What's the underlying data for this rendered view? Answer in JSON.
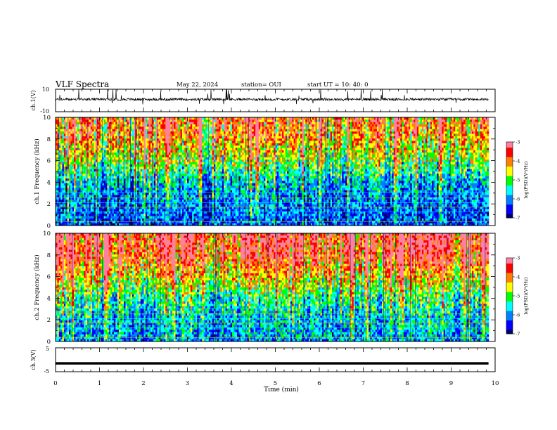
{
  "header": {
    "title": "VLF Spectra",
    "date": "May 22, 2024",
    "station": "station= OUI",
    "start": "start  UT  =   10: 40: 0"
  },
  "colors": {
    "spectrogram_scale": [
      "#000066",
      "#0000ff",
      "#0080ff",
      "#00ffff",
      "#00ff00",
      "#ffff00",
      "#ff8000",
      "#ff0000",
      "#ff80a0"
    ]
  },
  "chart_data": [
    {
      "type": "line",
      "name": "ch1-waveform",
      "ylabel": "ch.1(V)",
      "yticks": [
        "10",
        "-10"
      ],
      "ylim": [
        -10,
        10
      ],
      "x": [
        0,
        10
      ],
      "baseline_v": 1,
      "xlim": [
        0,
        10
      ]
    },
    {
      "type": "heatmap",
      "name": "ch1-spectrogram",
      "ylabel": "ch.1 Frequency (kHz)",
      "ylim": [
        0,
        10
      ],
      "yticks": [
        "0",
        "2",
        "4",
        "6",
        "8",
        "10"
      ],
      "xlim": [
        0,
        10
      ],
      "data_end_min": 9.85,
      "colorbar": {
        "label": "log(PSD)(V²/Hz)",
        "range": [
          -7,
          -3
        ],
        "ticks": [
          "-3",
          "-4",
          "-5",
          "-6",
          "-7"
        ]
      },
      "band_profile_khz": [
        0,
        2,
        4,
        6,
        8,
        10
      ],
      "band_profile_log_psd": [
        -6.2,
        -6.0,
        -5.6,
        -4.6,
        -4.0,
        -3.6
      ]
    },
    {
      "type": "heatmap",
      "name": "ch2-spectrogram",
      "ylabel": "ch.2 Frequency (kHz)",
      "ylim": [
        0,
        10
      ],
      "yticks": [
        "0",
        "2",
        "4",
        "6",
        "8",
        "10"
      ],
      "xlim": [
        0,
        10
      ],
      "data_end_min": 9.85,
      "colorbar": {
        "label": "log(PSD)(V²/Hz)",
        "range": [
          -7,
          -3
        ],
        "ticks": [
          "-3",
          "-4",
          "-5",
          "-6",
          "-7"
        ]
      },
      "band_profile_khz": [
        0,
        2,
        4,
        6,
        8,
        10
      ],
      "band_profile_log_psd": [
        -5.8,
        -5.6,
        -5.1,
        -4.2,
        -3.4,
        -3.2
      ]
    },
    {
      "type": "line",
      "name": "ch3-waveform",
      "ylabel": "ch.3(V)",
      "yticks": [
        "5",
        "-5"
      ],
      "ylim": [
        -5,
        5
      ],
      "level_v": -1.5,
      "xlim": [
        0,
        10
      ]
    }
  ],
  "xaxis": {
    "label": "Time  (min)",
    "ticks": [
      "0",
      "1",
      "2",
      "3",
      "4",
      "5",
      "6",
      "7",
      "8",
      "9",
      "10"
    ]
  }
}
